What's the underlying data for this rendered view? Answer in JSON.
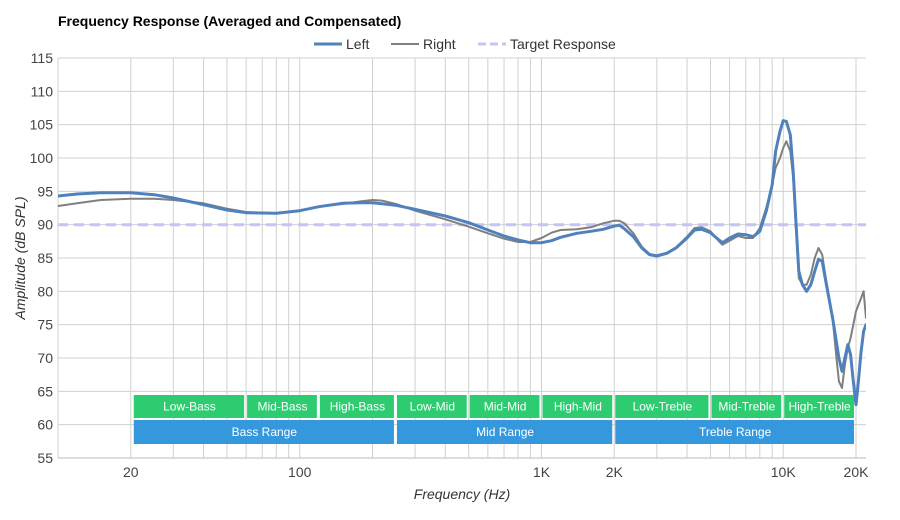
{
  "chart_data": {
    "type": "line",
    "title": "Frequency Response (Averaged and Compensated)",
    "xlabel": "Frequency (Hz)",
    "ylabel": "Amplitude (dB SPL)",
    "xscale": "log",
    "xlim": [
      10,
      22000
    ],
    "ylim": [
      55,
      115
    ],
    "yticks": [
      55,
      60,
      65,
      70,
      75,
      80,
      85,
      90,
      95,
      100,
      105,
      110,
      115
    ],
    "xticks": [
      {
        "value": 20,
        "label": "20"
      },
      {
        "value": 100,
        "label": "100"
      },
      {
        "value": 1000,
        "label": "1K"
      },
      {
        "value": 2000,
        "label": "2K"
      },
      {
        "value": 10000,
        "label": "10K"
      },
      {
        "value": 20000,
        "label": "20K"
      }
    ],
    "legend": {
      "placement": "top-center"
    },
    "colors": {
      "left": "#4f81bd",
      "right": "#7f7f7f",
      "target": "#c3c3f5",
      "band_green": "#2ecc71",
      "band_blue": "#3598dc",
      "grid": "#d0d0d0"
    },
    "series": [
      {
        "name": "Left",
        "key": "left",
        "points": [
          [
            10,
            94.3
          ],
          [
            12,
            94.6
          ],
          [
            15,
            94.8
          ],
          [
            20,
            94.8
          ],
          [
            25,
            94.5
          ],
          [
            30,
            94.0
          ],
          [
            40,
            93.0
          ],
          [
            50,
            92.2
          ],
          [
            60,
            91.8
          ],
          [
            80,
            91.7
          ],
          [
            100,
            92.1
          ],
          [
            120,
            92.7
          ],
          [
            150,
            93.2
          ],
          [
            180,
            93.3
          ],
          [
            200,
            93.3
          ],
          [
            250,
            92.9
          ],
          [
            300,
            92.3
          ],
          [
            400,
            91.3
          ],
          [
            500,
            90.3
          ],
          [
            600,
            89.2
          ],
          [
            700,
            88.3
          ],
          [
            800,
            87.7
          ],
          [
            900,
            87.3
          ],
          [
            1000,
            87.3
          ],
          [
            1100,
            87.6
          ],
          [
            1200,
            88.1
          ],
          [
            1400,
            88.7
          ],
          [
            1600,
            89.0
          ],
          [
            1800,
            89.3
          ],
          [
            2000,
            89.8
          ],
          [
            2100,
            89.9
          ],
          [
            2200,
            89.4
          ],
          [
            2400,
            88.2
          ],
          [
            2600,
            86.5
          ],
          [
            2800,
            85.5
          ],
          [
            3000,
            85.3
          ],
          [
            3300,
            85.7
          ],
          [
            3600,
            86.5
          ],
          [
            4000,
            88.0
          ],
          [
            4300,
            89.2
          ],
          [
            4600,
            89.3
          ],
          [
            5000,
            88.8
          ],
          [
            5300,
            88.0
          ],
          [
            5600,
            87.3
          ],
          [
            6000,
            88.0
          ],
          [
            6500,
            88.6
          ],
          [
            7000,
            88.5
          ],
          [
            7500,
            88.2
          ],
          [
            8000,
            89.0
          ],
          [
            8500,
            92.0
          ],
          [
            9000,
            96.0
          ],
          [
            9300,
            101.0
          ],
          [
            9700,
            104.0
          ],
          [
            10000,
            105.6
          ],
          [
            10300,
            105.5
          ],
          [
            10700,
            103.5
          ],
          [
            11000,
            98.0
          ],
          [
            11300,
            90.0
          ],
          [
            11600,
            83.0
          ],
          [
            12000,
            81.0
          ],
          [
            12500,
            80.0
          ],
          [
            13000,
            81.0
          ],
          [
            13500,
            83.0
          ],
          [
            14000,
            84.8
          ],
          [
            14500,
            84.5
          ],
          [
            15000,
            81.5
          ],
          [
            16000,
            76.0
          ],
          [
            16500,
            73.0
          ],
          [
            17000,
            70.0
          ],
          [
            17500,
            68.0
          ],
          [
            18000,
            70.0
          ],
          [
            18500,
            72.0
          ],
          [
            19000,
            70.5
          ],
          [
            19500,
            66.5
          ],
          [
            20000,
            63.0
          ],
          [
            20400,
            66.0
          ],
          [
            21000,
            71.0
          ],
          [
            21500,
            74.0
          ],
          [
            22000,
            75.0
          ]
        ]
      },
      {
        "name": "Right",
        "key": "right",
        "points": [
          [
            10,
            92.8
          ],
          [
            12,
            93.2
          ],
          [
            15,
            93.7
          ],
          [
            20,
            93.9
          ],
          [
            25,
            93.9
          ],
          [
            30,
            93.7
          ],
          [
            40,
            93.2
          ],
          [
            50,
            92.4
          ],
          [
            60,
            91.9
          ],
          [
            80,
            91.7
          ],
          [
            100,
            92.1
          ],
          [
            120,
            92.7
          ],
          [
            150,
            93.1
          ],
          [
            180,
            93.5
          ],
          [
            200,
            93.7
          ],
          [
            220,
            93.6
          ],
          [
            250,
            93.1
          ],
          [
            300,
            92.1
          ],
          [
            400,
            90.8
          ],
          [
            500,
            89.7
          ],
          [
            600,
            88.7
          ],
          [
            700,
            87.9
          ],
          [
            800,
            87.4
          ],
          [
            900,
            87.4
          ],
          [
            1000,
            88.0
          ],
          [
            1100,
            88.8
          ],
          [
            1200,
            89.2
          ],
          [
            1400,
            89.3
          ],
          [
            1600,
            89.6
          ],
          [
            1800,
            90.2
          ],
          [
            2000,
            90.6
          ],
          [
            2100,
            90.6
          ],
          [
            2200,
            90.2
          ],
          [
            2400,
            88.7
          ],
          [
            2600,
            86.7
          ],
          [
            2800,
            85.6
          ],
          [
            3000,
            85.4
          ],
          [
            3300,
            85.8
          ],
          [
            3600,
            86.6
          ],
          [
            4000,
            88.2
          ],
          [
            4300,
            89.5
          ],
          [
            4600,
            89.6
          ],
          [
            5000,
            89.0
          ],
          [
            5300,
            87.9
          ],
          [
            5600,
            87.0
          ],
          [
            6000,
            87.6
          ],
          [
            6500,
            88.3
          ],
          [
            7000,
            88.0
          ],
          [
            7500,
            88.0
          ],
          [
            8000,
            89.5
          ],
          [
            8500,
            92.5
          ],
          [
            9000,
            96.0
          ],
          [
            9300,
            98.5
          ],
          [
            9700,
            100.0
          ],
          [
            10000,
            101.5
          ],
          [
            10300,
            102.5
          ],
          [
            10700,
            101.0
          ],
          [
            11000,
            97.0
          ],
          [
            11300,
            89.0
          ],
          [
            11600,
            82.0
          ],
          [
            12000,
            81.0
          ],
          [
            12500,
            81.0
          ],
          [
            13000,
            82.5
          ],
          [
            13500,
            85.0
          ],
          [
            14000,
            86.5
          ],
          [
            14500,
            85.5
          ],
          [
            15000,
            82.0
          ],
          [
            16000,
            76.0
          ],
          [
            16500,
            71.0
          ],
          [
            17000,
            66.5
          ],
          [
            17500,
            65.5
          ],
          [
            18000,
            69.0
          ],
          [
            18500,
            71.5
          ],
          [
            19000,
            73.0
          ],
          [
            19500,
            75.0
          ],
          [
            20000,
            77.0
          ],
          [
            21000,
            79.0
          ],
          [
            21500,
            80.0
          ],
          [
            22000,
            76.0
          ]
        ]
      },
      {
        "name": "Target Response",
        "key": "target",
        "dashed": true,
        "points": [
          [
            10,
            90
          ],
          [
            22000,
            90
          ]
        ]
      }
    ],
    "bands": [
      {
        "row": 1,
        "label": "Low-Bass",
        "from": 20,
        "to": 60
      },
      {
        "row": 1,
        "label": "Mid-Bass",
        "from": 60,
        "to": 120
      },
      {
        "row": 1,
        "label": "High-Bass",
        "from": 120,
        "to": 250
      },
      {
        "row": 1,
        "label": "Low-Mid",
        "from": 250,
        "to": 500
      },
      {
        "row": 1,
        "label": "Mid-Mid",
        "from": 500,
        "to": 1000
      },
      {
        "row": 1,
        "label": "High-Mid",
        "from": 1000,
        "to": 2000
      },
      {
        "row": 1,
        "label": "Low-Treble",
        "from": 2000,
        "to": 5000
      },
      {
        "row": 1,
        "label": "Mid-Treble",
        "from": 5000,
        "to": 10000
      },
      {
        "row": 1,
        "label": "High-Treble",
        "from": 10000,
        "to": 20000
      },
      {
        "row": 2,
        "label": "Bass Range",
        "from": 20,
        "to": 250
      },
      {
        "row": 2,
        "label": "Mid Range",
        "from": 250,
        "to": 2000
      },
      {
        "row": 2,
        "label": "Treble Range",
        "from": 2000,
        "to": 20000
      }
    ]
  }
}
